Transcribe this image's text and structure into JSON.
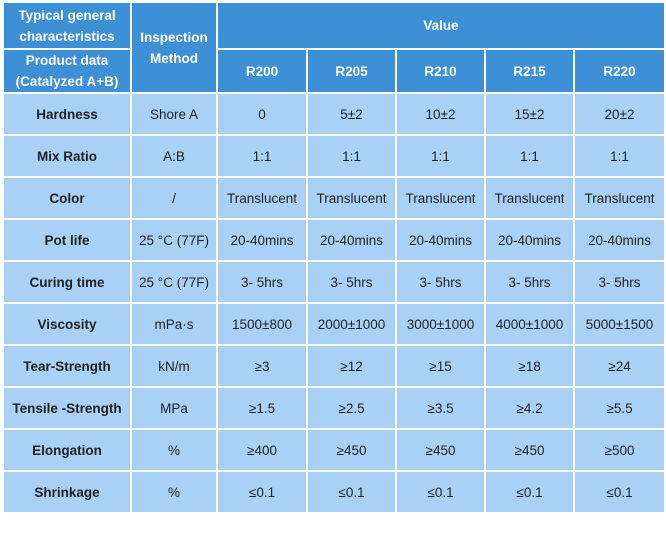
{
  "header": {
    "col1_top": "Typical general characteristics",
    "col1_bottom": "Product data (Catalyzed A+B)",
    "inspection": "Inspection Method",
    "value": "Value",
    "models": [
      "R200",
      "R205",
      "R210",
      "R215",
      "R220"
    ]
  },
  "rows": [
    {
      "param": "Hardness",
      "method": "Shore A",
      "values": [
        "0",
        "5±2",
        "10±2",
        "15±2",
        "20±2"
      ]
    },
    {
      "param": "Mix Ratio",
      "method": "A:B",
      "values": [
        "1:1",
        "1:1",
        "1:1",
        "1:1",
        "1:1"
      ]
    },
    {
      "param": "Color",
      "method": "/",
      "values": [
        "Translucent",
        "Translucent",
        "Translucent",
        "Translucent",
        "Translucent"
      ]
    },
    {
      "param": "Pot life",
      "method": "25 °C (77F)",
      "values": [
        "20-40mins",
        "20-40mins",
        "20-40mins",
        "20-40mins",
        "20-40mins"
      ]
    },
    {
      "param": "Curing time",
      "method": "25 °C (77F)",
      "values": [
        "3- 5hrs",
        "3- 5hrs",
        "3- 5hrs",
        "3- 5hrs",
        "3- 5hrs"
      ]
    },
    {
      "param": "Viscosity",
      "method": "mPa·s",
      "values": [
        "1500±800",
        "2000±1000",
        "3000±1000",
        "4000±1000",
        "5000±1500"
      ]
    },
    {
      "param": "Tear-Strength",
      "method": "kN/m",
      "values": [
        "≥3",
        "≥12",
        "≥15",
        "≥18",
        "≥24"
      ]
    },
    {
      "param": "Tensile -Strength",
      "method": "MPa",
      "values": [
        "≥1.5",
        "≥2.5",
        "≥3.5",
        "≥4.2",
        "≥5.5"
      ]
    },
    {
      "param": "Elongation",
      "method": "%",
      "values": [
        "≥400",
        "≥450",
        "≥450",
        "≥450",
        "≥500"
      ]
    },
    {
      "param": "Shrinkage",
      "method": "%",
      "values": [
        "≤0.1",
        "≤0.1",
        "≤0.1",
        "≤0.1",
        "≤0.1"
      ]
    }
  ]
}
